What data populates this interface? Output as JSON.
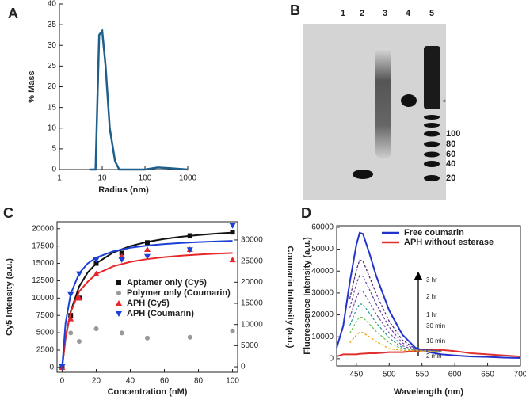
{
  "chart_data": [
    {
      "type": "line",
      "panel": "A",
      "xlabel": "Radius (nm)",
      "ylabel": "% Mass",
      "xscale": "log",
      "xlim": [
        1,
        1000
      ],
      "xticks": [
        1,
        10,
        100,
        1000
      ],
      "ylim": [
        0,
        40
      ],
      "yticks": [
        0,
        5,
        10,
        15,
        20,
        25,
        30,
        35,
        40
      ],
      "x": [
        5,
        7,
        8.5,
        10,
        12,
        15,
        20,
        25,
        50,
        100,
        200,
        400,
        1000
      ],
      "series": [
        {
          "color": "#1f5f8b",
          "line": true,
          "values": [
            0,
            0,
            32.5,
            33.5,
            25,
            10,
            2,
            0,
            0,
            0,
            0.5,
            0.3,
            0
          ]
        }
      ]
    },
    {
      "type": "scatter",
      "panel": "C",
      "xlabel": "Concentration (nM)",
      "ylabel": "Cy5 Intensity (a.u.)",
      "y2label": "Coumarin Intensity (a.u.)",
      "xlim": [
        -3,
        103
      ],
      "xticks": [
        0,
        20,
        40,
        60,
        80,
        100
      ],
      "ylim": [
        -700,
        21000
      ],
      "yticks": [
        0,
        2500,
        5000,
        7500,
        10000,
        12500,
        15000,
        17500,
        20000
      ],
      "y2lim": [
        -1300,
        34300
      ],
      "y2ticks": [
        0,
        5000,
        10000,
        15000,
        20000,
        25000,
        30000
      ],
      "series": [
        {
          "name": "Aptamer only (Cy5)",
          "color": "#111111",
          "marker": "square",
          "x": [
            0,
            5,
            10,
            20,
            35,
            50,
            75,
            100
          ],
          "values": [
            0,
            7500,
            10000,
            15000,
            16500,
            18000,
            19000,
            19500
          ]
        },
        {
          "name": "Polymer only (Coumarin)",
          "color": "#999999",
          "marker": "circle",
          "axis": "y2",
          "x": [
            5,
            10,
            20,
            35,
            50,
            75,
            100
          ],
          "values": [
            8000,
            6000,
            9000,
            8000,
            6800,
            7000,
            8500
          ]
        },
        {
          "name": "APH (Cy5)",
          "color": "#e8262a",
          "marker": "triangle-up",
          "x": [
            0,
            5,
            10,
            20,
            35,
            50,
            75,
            100
          ],
          "values": [
            0,
            7000,
            10000,
            13500,
            16000,
            17000,
            17000,
            15500
          ]
        },
        {
          "name": "APH (Coumarin)",
          "color": "#1c3fd6",
          "marker": "triangle-down",
          "axis": "y2",
          "x": [
            0,
            5,
            10,
            20,
            35,
            50,
            75,
            100
          ],
          "values": [
            0,
            17100,
            22000,
            25300,
            25300,
            26100,
            27700,
            33400
          ]
        },
        {
          "color": "#111111",
          "line": true,
          "x": [
            0,
            2,
            5,
            10,
            15,
            20,
            30,
            40,
            50,
            60,
            70,
            80,
            90,
            100
          ],
          "values": [
            0,
            4200,
            8077,
            11667,
            13696,
            15000,
            16579,
            17500,
            18103,
            18529,
            18846,
            19091,
            19286,
            19444
          ]
        },
        {
          "color": "#e8262a",
          "line": true,
          "x": [
            0,
            2,
            5,
            10,
            15,
            20,
            30,
            40,
            50,
            60,
            70,
            80,
            90,
            100
          ],
          "values": [
            0,
            4375,
            7955,
            10938,
            12353,
            13462,
            14583,
            15217,
            15625,
            15909,
            16118,
            16279,
            16406,
            16509
          ]
        },
        {
          "color": "#1c3fd6",
          "line": true,
          "axis": "y2",
          "x": [
            0,
            2,
            5,
            10,
            15,
            20,
            30,
            40,
            50,
            60,
            70,
            80,
            90,
            100
          ],
          "values": [
            0,
            10323,
            17206,
            22121,
            24450,
            25808,
            27327,
            28155,
            28676,
            29035,
            29296,
            29495,
            29651,
            29778
          ]
        }
      ]
    },
    {
      "type": "line",
      "panel": "D",
      "xlabel": "Wavelength (nm)",
      "ylabel": "Fluorescence Intensity (a.u.)",
      "xlim": [
        420,
        700
      ],
      "xticks": [
        450,
        500,
        550,
        600,
        650,
        700
      ],
      "ylim": [
        -3300,
        60700
      ],
      "yticks": [
        0,
        10000,
        20000,
        30000,
        40000,
        50000,
        60000
      ],
      "series": [
        {
          "name": "Free coumarin",
          "color": "#2233cc",
          "line": true,
          "x": [
            420,
            430,
            440,
            450,
            455,
            460,
            470,
            480,
            500,
            520,
            540,
            560,
            580,
            600,
            625,
            650,
            675,
            700
          ],
          "values": [
            5000,
            15000,
            35000,
            52000,
            57500,
            57000,
            48000,
            38000,
            22000,
            11000,
            5000,
            3000,
            2000,
            1500,
            1000,
            800,
            500,
            300
          ]
        },
        {
          "name": "APH without esterase",
          "color": "#e03030",
          "line": true,
          "x": [
            420,
            430,
            440,
            450,
            455,
            460,
            470,
            480,
            500,
            520,
            540,
            560,
            580,
            600,
            625,
            650,
            675,
            700
          ],
          "values": [
            1000,
            2000,
            2000,
            2000,
            2200,
            2300,
            2500,
            2500,
            3000,
            3000,
            3500,
            4000,
            4000,
            3500,
            2500,
            2000,
            1500,
            1000
          ]
        },
        {
          "name": "3 hr",
          "color": "#4b2377",
          "line": true,
          "dash": true,
          "x": [
            440,
            450,
            455,
            460,
            470,
            480,
            500,
            520,
            540,
            560,
            580
          ],
          "values": [
            27450,
            40500,
            45000,
            44550,
            37350,
            29700,
            17100,
            8550,
            4500,
            4000,
            3500
          ]
        },
        {
          "name": "2 hr",
          "color": "#5e3c99",
          "line": true,
          "dash": true,
          "x": [
            440,
            450,
            455,
            460,
            470,
            480,
            500,
            520,
            540,
            560,
            580
          ],
          "values": [
            23180,
            34200,
            38000,
            37620,
            31540,
            25080,
            14440,
            7220,
            4200,
            3800,
            3500
          ]
        },
        {
          "name": "1 hr",
          "color": "#7b4fb0",
          "line": true,
          "dash": true,
          "x": [
            440,
            450,
            455,
            460,
            470,
            480,
            500,
            520,
            540,
            560,
            580
          ],
          "values": [
            18910,
            27900,
            31000,
            30690,
            25730,
            20460,
            11780,
            5890,
            4000,
            3700,
            3400
          ]
        },
        {
          "name": "30 min",
          "color": "#1f9e89",
          "line": true,
          "dash": true,
          "x": [
            440,
            450,
            455,
            460,
            470,
            480,
            500,
            520,
            540,
            560,
            580
          ],
          "values": [
            15250,
            22500,
            25000,
            24750,
            20750,
            16500,
            9500,
            5000,
            3900,
            3600,
            3300
          ]
        },
        {
          "name": "10 min",
          "color": "#6abf4b",
          "line": true,
          "dash": true,
          "x": [
            440,
            450,
            455,
            460,
            470,
            480,
            500,
            520,
            540,
            560,
            580
          ],
          "values": [
            11590,
            17100,
            19000,
            18810,
            15770,
            12540,
            7220,
            4500,
            3800,
            3500,
            3200
          ]
        },
        {
          "name": "2 min",
          "color": "#e69f00",
          "line": true,
          "dash": true,
          "x": [
            440,
            450,
            455,
            460,
            470,
            480,
            500,
            520,
            540,
            560,
            580
          ],
          "values": [
            7320,
            10800,
            12000,
            11880,
            9960,
            7920,
            4560,
            3800,
            3600,
            3400,
            3100
          ]
        }
      ]
    }
  ],
  "gel": {
    "panel": "B",
    "lanes": [
      "1",
      "2",
      "3",
      "4",
      "5"
    ],
    "markers": [
      "100",
      "80",
      "60",
      "40",
      "20"
    ],
    "asterisk": "*"
  }
}
